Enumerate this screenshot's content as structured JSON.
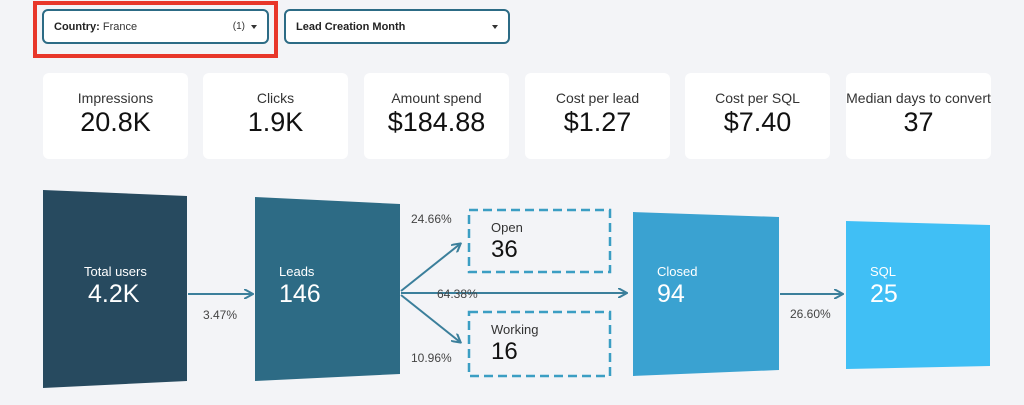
{
  "filters": {
    "country": {
      "label": "Country",
      "value": "France",
      "count": "(1)"
    },
    "month": {
      "label": "Lead Creation Month"
    }
  },
  "kpis": [
    {
      "label": "Impressions",
      "value": "20.8K"
    },
    {
      "label": "Clicks",
      "value": "1.9K"
    },
    {
      "label": "Amount spend",
      "value": "$184.88"
    },
    {
      "label": "Cost per lead",
      "value": "$1.27"
    },
    {
      "label": "Cost per SQL",
      "value": "$7.40"
    },
    {
      "label": "Median days to convert",
      "value": "37"
    }
  ],
  "funnel": {
    "total_users": {
      "label": "Total users",
      "value": "4.2K"
    },
    "leads": {
      "label": "Leads",
      "value": "146"
    },
    "open": {
      "label": "Open",
      "value": "36"
    },
    "working": {
      "label": "Working",
      "value": "16"
    },
    "closed": {
      "label": "Closed",
      "value": "94"
    },
    "sql": {
      "label": "SQL",
      "value": "25"
    },
    "rates": {
      "users_to_leads": "3.47%",
      "leads_to_open": "24.66%",
      "leads_to_closed": "64.38%",
      "leads_to_working": "10.96%",
      "closed_to_sql": "26.60%"
    }
  },
  "colors": {
    "total_users": "#274a5f",
    "leads": "#2d6b85",
    "closed": "#3aa2d1",
    "sql": "#40bff5",
    "dashed": "#3b9ec3",
    "arrow": "#3b7f9b",
    "highlight": "#e8372a"
  }
}
